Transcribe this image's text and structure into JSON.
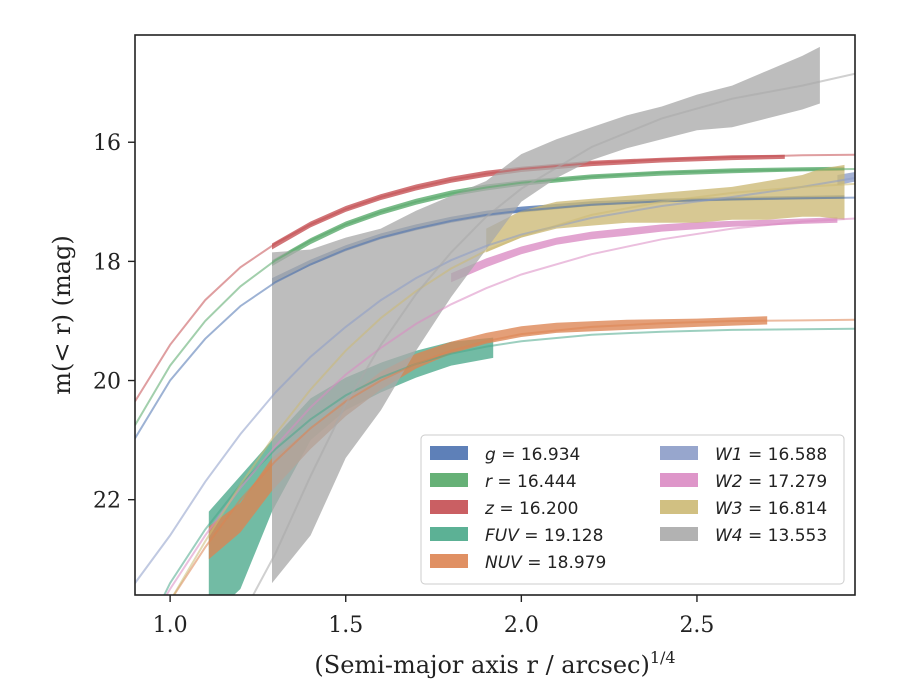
{
  "chart_data": {
    "type": "line",
    "title": "",
    "xlabel": "(Semi-major axis r / arcsec)",
    "xlabel_exponent": "1/4",
    "ylabel": "m(< r) (mag)",
    "xlim": [
      0.9,
      2.95
    ],
    "ylim": [
      23.6,
      14.2
    ],
    "y_inverted": true,
    "grid": false,
    "legend_position": "lower-right",
    "xticks": [
      {
        "value": 1.0,
        "label": "1.0"
      },
      {
        "value": 1.5,
        "label": "1.5"
      },
      {
        "value": 2.0,
        "label": "2.0"
      },
      {
        "value": 2.5,
        "label": "2.5"
      }
    ],
    "yticks": [
      {
        "value": 16,
        "label": "16"
      },
      {
        "value": 18,
        "label": "18"
      },
      {
        "value": 20,
        "label": "20"
      },
      {
        "value": 22,
        "label": "22"
      }
    ],
    "series": [
      {
        "name": "g",
        "label_value": "16.934",
        "color": "#4c72b0",
        "model": [
          [
            0.9,
            20.97
          ],
          [
            1.0,
            20.0
          ],
          [
            1.1,
            19.3
          ],
          [
            1.2,
            18.75
          ],
          [
            1.3,
            18.35
          ],
          [
            1.4,
            18.05
          ],
          [
            1.5,
            17.8
          ],
          [
            1.6,
            17.6
          ],
          [
            1.7,
            17.45
          ],
          [
            1.8,
            17.32
          ],
          [
            1.9,
            17.22
          ],
          [
            2.0,
            17.15
          ],
          [
            2.2,
            17.05
          ],
          [
            2.4,
            16.99
          ],
          [
            2.6,
            16.96
          ],
          [
            2.8,
            16.94
          ],
          [
            2.95,
            16.93
          ]
        ],
        "band": [
          [
            1.29,
            18.38,
            18.28
          ],
          [
            1.4,
            18.07,
            17.97
          ],
          [
            1.5,
            17.83,
            17.73
          ],
          [
            1.6,
            17.63,
            17.53
          ],
          [
            1.7,
            17.48,
            17.38
          ],
          [
            1.8,
            17.35,
            17.25
          ],
          [
            1.9,
            17.25,
            17.15
          ],
          [
            2.0,
            17.18,
            17.08
          ],
          [
            2.2,
            17.07,
            16.99
          ],
          [
            2.4,
            17.01,
            16.95
          ],
          [
            2.6,
            16.98,
            16.92
          ],
          [
            2.8,
            16.96,
            16.9
          ],
          [
            2.92,
            16.95,
            16.89
          ]
        ]
      },
      {
        "name": "r",
        "label_value": "16.444",
        "color": "#55a868",
        "model": [
          [
            0.9,
            20.75
          ],
          [
            1.0,
            19.75
          ],
          [
            1.1,
            19.0
          ],
          [
            1.2,
            18.42
          ],
          [
            1.3,
            17.98
          ],
          [
            1.4,
            17.65
          ],
          [
            1.5,
            17.38
          ],
          [
            1.6,
            17.17
          ],
          [
            1.7,
            17.0
          ],
          [
            1.8,
            16.86
          ],
          [
            1.9,
            16.76
          ],
          [
            2.0,
            16.68
          ],
          [
            2.2,
            16.58
          ],
          [
            2.4,
            16.51
          ],
          [
            2.6,
            16.48
          ],
          [
            2.8,
            16.46
          ],
          [
            2.95,
            16.45
          ]
        ],
        "band": [
          [
            1.29,
            18.08,
            17.98
          ],
          [
            1.4,
            17.71,
            17.61
          ],
          [
            1.5,
            17.43,
            17.33
          ],
          [
            1.6,
            17.22,
            17.12
          ],
          [
            1.7,
            17.05,
            16.95
          ],
          [
            1.8,
            16.91,
            16.81
          ],
          [
            1.9,
            16.81,
            16.71
          ],
          [
            2.0,
            16.73,
            16.64
          ],
          [
            2.2,
            16.62,
            16.54
          ],
          [
            2.4,
            16.56,
            16.48
          ],
          [
            2.6,
            16.52,
            16.44
          ],
          [
            2.8,
            16.49,
            16.42
          ],
          [
            2.92,
            16.48,
            16.41
          ]
        ]
      },
      {
        "name": "z",
        "label_value": "16.200",
        "color": "#c44e52",
        "model": [
          [
            0.9,
            20.35
          ],
          [
            1.0,
            19.4
          ],
          [
            1.1,
            18.65
          ],
          [
            1.2,
            18.1
          ],
          [
            1.3,
            17.7
          ],
          [
            1.4,
            17.38
          ],
          [
            1.5,
            17.12
          ],
          [
            1.6,
            16.92
          ],
          [
            1.7,
            16.76
          ],
          [
            1.8,
            16.63
          ],
          [
            1.9,
            16.53
          ],
          [
            2.0,
            16.45
          ],
          [
            2.2,
            16.35
          ],
          [
            2.4,
            16.29
          ],
          [
            2.6,
            16.25
          ],
          [
            2.8,
            16.22
          ],
          [
            2.95,
            16.21
          ]
        ],
        "band": [
          [
            1.29,
            17.8,
            17.7
          ],
          [
            1.4,
            17.43,
            17.33
          ],
          [
            1.5,
            17.17,
            17.07
          ],
          [
            1.6,
            16.97,
            16.87
          ],
          [
            1.7,
            16.81,
            16.71
          ],
          [
            1.8,
            16.68,
            16.58
          ],
          [
            1.9,
            16.58,
            16.48
          ],
          [
            2.0,
            16.5,
            16.41
          ],
          [
            2.2,
            16.4,
            16.31
          ],
          [
            2.4,
            16.34,
            16.26
          ],
          [
            2.6,
            16.3,
            16.22
          ],
          [
            2.75,
            16.28,
            16.21
          ]
        ]
      },
      {
        "name": "FUV",
        "label_value": "19.128",
        "color": "#4aa88a",
        "model": [
          [
            0.95,
            24.0
          ],
          [
            1.0,
            23.4
          ],
          [
            1.1,
            22.5
          ],
          [
            1.2,
            21.75
          ],
          [
            1.3,
            21.15
          ],
          [
            1.4,
            20.65
          ],
          [
            1.5,
            20.25
          ],
          [
            1.6,
            19.95
          ],
          [
            1.7,
            19.72
          ],
          [
            1.8,
            19.55
          ],
          [
            1.9,
            19.43
          ],
          [
            2.0,
            19.34
          ],
          [
            2.2,
            19.23
          ],
          [
            2.4,
            19.18
          ],
          [
            2.6,
            19.15
          ],
          [
            2.8,
            19.14
          ],
          [
            2.95,
            19.13
          ]
        ],
        "band": [
          [
            1.11,
            24.0,
            22.2
          ],
          [
            1.2,
            23.5,
            21.6
          ],
          [
            1.29,
            22.2,
            21.0
          ],
          [
            1.4,
            21.0,
            20.3
          ],
          [
            1.5,
            20.5,
            19.95
          ],
          [
            1.6,
            20.2,
            19.7
          ],
          [
            1.7,
            19.95,
            19.5
          ],
          [
            1.8,
            19.75,
            19.35
          ],
          [
            1.92,
            19.62,
            19.28
          ]
        ]
      },
      {
        "name": "NUV",
        "label_value": "18.979",
        "color": "#dd8452",
        "model": [
          [
            0.97,
            24.0
          ],
          [
            1.0,
            23.7
          ],
          [
            1.1,
            22.8
          ],
          [
            1.2,
            22.0
          ],
          [
            1.3,
            21.35
          ],
          [
            1.4,
            20.8
          ],
          [
            1.5,
            20.35
          ],
          [
            1.6,
            20.0
          ],
          [
            1.7,
            19.72
          ],
          [
            1.8,
            19.5
          ],
          [
            1.9,
            19.34
          ],
          [
            2.0,
            19.22
          ],
          [
            2.2,
            19.1
          ],
          [
            2.4,
            19.04
          ],
          [
            2.6,
            19.0
          ],
          [
            2.8,
            18.99
          ],
          [
            2.95,
            18.98
          ]
        ],
        "band": [
          [
            1.11,
            23.0,
            22.45
          ],
          [
            1.2,
            22.55,
            22.05
          ],
          [
            1.29,
            21.85,
            21.3
          ],
          [
            1.4,
            21.15,
            20.8
          ],
          [
            1.5,
            20.6,
            20.3
          ],
          [
            1.6,
            20.15,
            19.85
          ],
          [
            1.7,
            19.8,
            19.55
          ],
          [
            1.8,
            19.55,
            19.35
          ],
          [
            1.9,
            19.38,
            19.2
          ],
          [
            2.0,
            19.27,
            19.09
          ],
          [
            2.1,
            19.2,
            19.03
          ],
          [
            2.3,
            19.15,
            18.98
          ],
          [
            2.5,
            19.1,
            18.96
          ],
          [
            2.7,
            19.06,
            18.92
          ]
        ]
      },
      {
        "name": "W1",
        "label_value": "16.588",
        "color": "#8c9cc8",
        "model": [
          [
            0.9,
            23.4
          ],
          [
            1.0,
            22.6
          ],
          [
            1.1,
            21.7
          ],
          [
            1.2,
            20.9
          ],
          [
            1.3,
            20.2
          ],
          [
            1.4,
            19.6
          ],
          [
            1.5,
            19.1
          ],
          [
            1.6,
            18.65
          ],
          [
            1.7,
            18.28
          ],
          [
            1.8,
            17.98
          ],
          [
            1.9,
            17.74
          ],
          [
            2.0,
            17.55
          ],
          [
            2.2,
            17.27
          ],
          [
            2.4,
            17.07
          ],
          [
            2.6,
            16.92
          ],
          [
            2.8,
            16.75
          ],
          [
            2.95,
            16.6
          ]
        ],
        "band": [
          [
            2.9,
            16.72,
            16.55
          ],
          [
            2.95,
            16.66,
            16.5
          ]
        ]
      },
      {
        "name": "W2",
        "label_value": "17.279",
        "color": "#da8bc3",
        "model": [
          [
            0.95,
            24.0
          ],
          [
            1.0,
            23.5
          ],
          [
            1.1,
            22.6
          ],
          [
            1.2,
            21.8
          ],
          [
            1.3,
            21.1
          ],
          [
            1.4,
            20.45
          ],
          [
            1.5,
            19.9
          ],
          [
            1.6,
            19.45
          ],
          [
            1.7,
            19.05
          ],
          [
            1.8,
            18.72
          ],
          [
            1.9,
            18.45
          ],
          [
            2.0,
            18.22
          ],
          [
            2.2,
            17.88
          ],
          [
            2.4,
            17.63
          ],
          [
            2.6,
            17.45
          ],
          [
            2.8,
            17.33
          ],
          [
            2.95,
            17.28
          ]
        ],
        "band": [
          [
            1.8,
            18.35,
            18.2
          ],
          [
            1.9,
            18.1,
            17.95
          ],
          [
            2.0,
            17.88,
            17.75
          ],
          [
            2.1,
            17.72,
            17.6
          ],
          [
            2.2,
            17.63,
            17.5
          ],
          [
            2.3,
            17.57,
            17.44
          ],
          [
            2.4,
            17.5,
            17.38
          ],
          [
            2.5,
            17.46,
            17.34
          ],
          [
            2.6,
            17.42,
            17.32
          ],
          [
            2.7,
            17.4,
            17.3
          ],
          [
            2.8,
            17.37,
            17.28
          ],
          [
            2.9,
            17.35,
            17.26
          ]
        ]
      },
      {
        "name": "W3",
        "label_value": "16.814",
        "color": "#ccb974",
        "model": [
          [
            0.97,
            24.0
          ],
          [
            1.0,
            23.7
          ],
          [
            1.1,
            22.7
          ],
          [
            1.2,
            21.75
          ],
          [
            1.3,
            20.9
          ],
          [
            1.4,
            20.15
          ],
          [
            1.5,
            19.5
          ],
          [
            1.6,
            18.95
          ],
          [
            1.7,
            18.5
          ],
          [
            1.8,
            18.12
          ],
          [
            1.9,
            17.82
          ],
          [
            2.0,
            17.58
          ],
          [
            2.2,
            17.22
          ],
          [
            2.4,
            17.0
          ],
          [
            2.6,
            16.85
          ],
          [
            2.8,
            16.75
          ],
          [
            2.95,
            16.7
          ]
        ],
        "band": [
          [
            1.9,
            17.85,
            17.45
          ],
          [
            2.0,
            17.6,
            17.15
          ],
          [
            2.1,
            17.45,
            17.0
          ],
          [
            2.2,
            17.4,
            16.95
          ],
          [
            2.3,
            17.35,
            16.9
          ],
          [
            2.4,
            17.35,
            16.85
          ],
          [
            2.5,
            17.35,
            16.8
          ],
          [
            2.6,
            17.3,
            16.75
          ],
          [
            2.7,
            17.3,
            16.65
          ],
          [
            2.8,
            17.25,
            16.55
          ],
          [
            2.85,
            17.25,
            16.45
          ],
          [
            2.92,
            17.3,
            16.38
          ]
        ]
      },
      {
        "name": "W4",
        "label_value": "13.553",
        "color": "#aaaaaa",
        "model": [
          [
            1.2,
            24.0
          ],
          [
            1.3,
            22.9
          ],
          [
            1.4,
            21.6
          ],
          [
            1.5,
            20.4
          ],
          [
            1.6,
            19.4
          ],
          [
            1.7,
            18.55
          ],
          [
            1.8,
            17.85
          ],
          [
            1.9,
            17.25
          ],
          [
            2.0,
            16.78
          ],
          [
            2.2,
            16.08
          ],
          [
            2.4,
            15.6
          ],
          [
            2.6,
            15.27
          ],
          [
            2.8,
            15.05
          ],
          [
            2.95,
            14.85
          ]
        ],
        "band": [
          [
            1.29,
            23.4,
            17.85
          ],
          [
            1.4,
            22.6,
            17.8
          ],
          [
            1.5,
            21.3,
            17.6
          ],
          [
            1.6,
            20.5,
            17.45
          ],
          [
            1.7,
            19.5,
            17.15
          ],
          [
            1.8,
            18.6,
            16.9
          ],
          [
            1.9,
            17.8,
            16.65
          ],
          [
            2.0,
            17.0,
            16.2
          ],
          [
            2.1,
            16.6,
            15.95
          ],
          [
            2.2,
            16.3,
            15.75
          ],
          [
            2.3,
            16.1,
            15.55
          ],
          [
            2.4,
            15.95,
            15.4
          ],
          [
            2.5,
            15.8,
            15.2
          ],
          [
            2.6,
            15.75,
            15.05
          ],
          [
            2.7,
            15.6,
            14.8
          ],
          [
            2.8,
            15.45,
            14.55
          ],
          [
            2.85,
            15.35,
            14.4
          ]
        ]
      }
    ],
    "legend": {
      "columns": [
        [
          "g",
          "r",
          "z",
          "FUV",
          "NUV"
        ],
        [
          "W1",
          "W2",
          "W3",
          "W4"
        ]
      ]
    }
  }
}
